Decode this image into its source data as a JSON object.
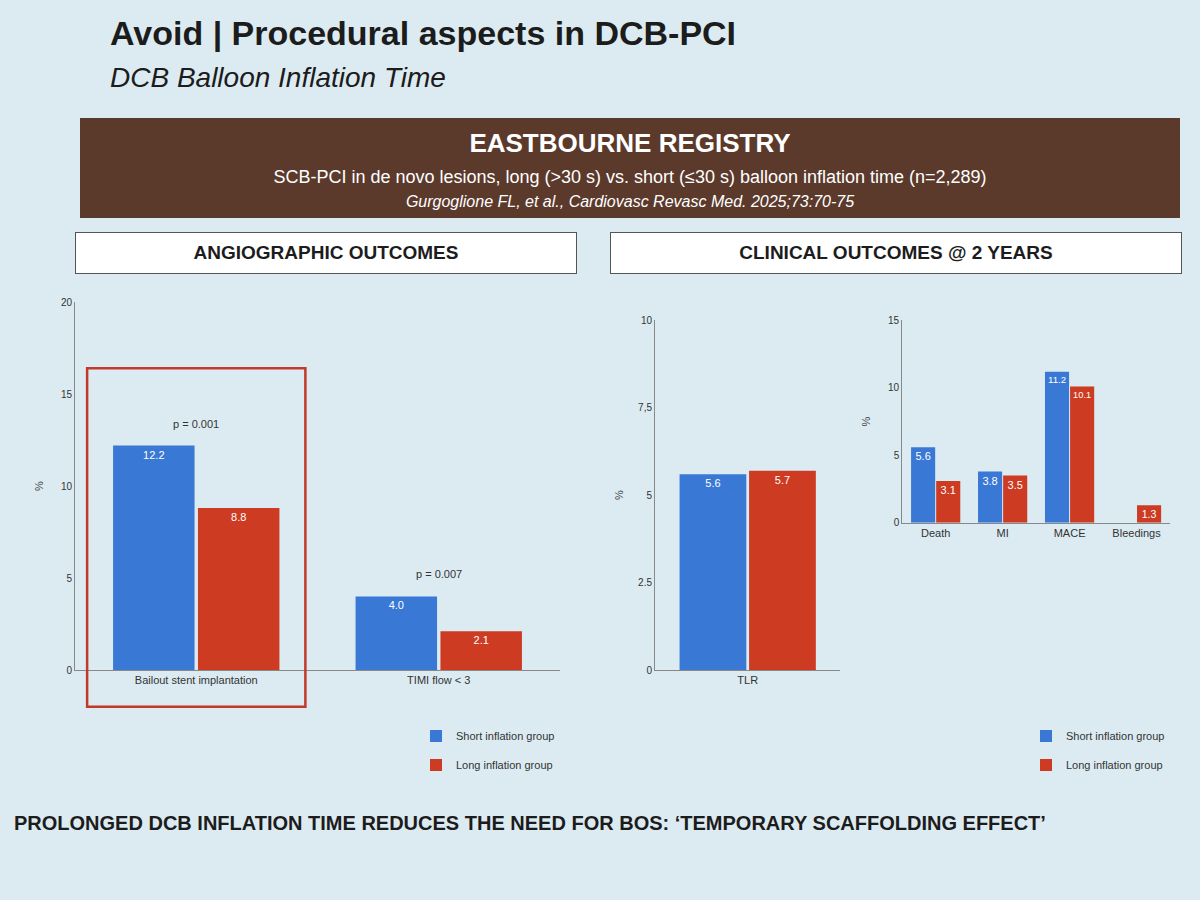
{
  "header": {
    "title": "Avoid | Procedural aspects in DCB-PCI",
    "subtitle": "DCB Balloon Inflation Time",
    "banner": {
      "title": "EASTBOURNE REGISTRY",
      "subtitle": "SCB-PCI in de novo lesions, long (>30 s) vs. short (≤30 s) balloon inflation time (n=2,289)",
      "citation": "Gurgoglione FL, et al., Cardiovasc Revasc Med. 2025;73:70-75"
    },
    "panels": [
      "ANGIOGRAPHIC OUTCOMES",
      "CLINICAL OUTCOMES @ 2 YEARS"
    ],
    "footer": "PROLONGED DCB INFLATION TIME REDUCES THE NEED FOR BOS: ‘TEMPORARY SCAFFOLDING EFFECT’"
  },
  "chart_data": [
    {
      "type": "bar",
      "ylabel": "%",
      "categories": [
        "Bailout stent implantation",
        "TIMI flow < 3"
      ],
      "series": [
        {
          "name": "Short inflation group",
          "color": "#3a78d6",
          "values": [
            12.2,
            4.0
          ],
          "value_labels": [
            "12.2",
            "4.0"
          ]
        },
        {
          "name": "Long inflation group",
          "color": "#cc3b22",
          "values": [
            8.8,
            2.1
          ]
        }
      ],
      "ylim": [
        0,
        20
      ],
      "yticks": [
        0,
        5,
        10,
        15,
        20
      ],
      "annotations": [
        {
          "category": "Bailout stent implantation",
          "text": "p = 0.001"
        },
        {
          "category": "TIMI flow < 3",
          "text": "p = 0.007"
        }
      ],
      "data_labels": true,
      "grid": false,
      "legend": "bottom right"
    },
    {
      "type": "bar",
      "ylabel": "%",
      "categories": [
        "TLR"
      ],
      "series": [
        {
          "name": "Short inflation group",
          "color": "#3a78d6",
          "values": [
            5.6
          ]
        },
        {
          "name": "Long inflation group",
          "color": "#cc3b22",
          "values": [
            5.7
          ]
        }
      ],
      "ylim": [
        0,
        10
      ],
      "yticks": [
        0,
        2.5,
        5,
        {
          "value": 7.5,
          "label": "7,5"
        },
        10
      ],
      "data_labels": true,
      "grid": false
    },
    {
      "type": "bar",
      "ylabel": "%",
      "categories": [
        "Death",
        "MI",
        "MACE",
        "Bleedings"
      ],
      "series": [
        {
          "name": "Short inflation group",
          "color": "#3a78d6",
          "values": [
            5.6,
            3.8,
            11.2,
            null
          ]
        },
        {
          "name": "Long inflation group",
          "color": "#cc3b22",
          "values": [
            3.1,
            3.5,
            10.1,
            1.3
          ]
        }
      ],
      "ylim": [
        0,
        15
      ],
      "yticks": [
        0,
        5,
        10,
        15
      ],
      "data_labels": true,
      "grid": false,
      "legend": "bottom right"
    }
  ]
}
